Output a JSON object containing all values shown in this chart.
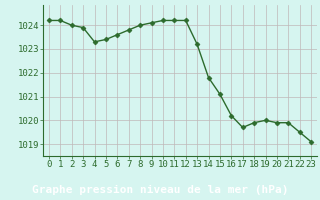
{
  "hours": [
    0,
    1,
    2,
    3,
    4,
    5,
    6,
    7,
    8,
    9,
    10,
    11,
    12,
    13,
    14,
    15,
    16,
    17,
    18,
    19,
    20,
    21,
    22,
    23
  ],
  "pressure": [
    1024.2,
    1024.2,
    1024.0,
    1023.9,
    1023.3,
    1023.4,
    1023.6,
    1023.8,
    1024.0,
    1024.1,
    1024.2,
    1024.2,
    1024.2,
    1023.2,
    1021.8,
    1021.1,
    1020.2,
    1019.7,
    1019.9,
    1020.0,
    1019.9,
    1019.9,
    1019.5,
    1019.1
  ],
  "line_color": "#2d6b2d",
  "marker": "D",
  "marker_size": 2.5,
  "bg_color": "#d6f5f0",
  "bottom_bar_color": "#2d6b2d",
  "grid_color": "#c0b8b8",
  "ylabel_ticks": [
    1019,
    1020,
    1021,
    1022,
    1023,
    1024
  ],
  "ylim": [
    1018.5,
    1024.85
  ],
  "xlabel": "Graphe pression niveau de la mer (hPa)",
  "xlabel_fontsize": 8,
  "tick_fontsize": 6.5,
  "xtick_label_color": "#2d6b2d",
  "ytick_label_color": "#2d6b2d"
}
